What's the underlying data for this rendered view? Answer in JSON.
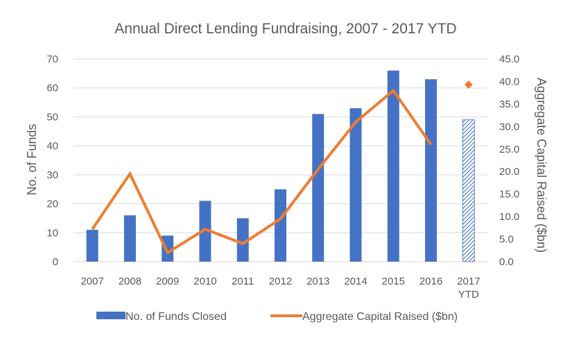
{
  "chart_data": {
    "type": "bar",
    "title": "Annual Direct Lending Fundraising, 2007 - 2017 YTD",
    "categories": [
      "2007",
      "2008",
      "2009",
      "2010",
      "2011",
      "2012",
      "2013",
      "2014",
      "2015",
      "2016",
      "2017 YTD"
    ],
    "series": [
      {
        "name": "No. of Funds Closed",
        "type": "bar",
        "axis": "left",
        "color": "#4472C4",
        "values": [
          11,
          16,
          9,
          21,
          15,
          25,
          51,
          53,
          66,
          63,
          49
        ]
      },
      {
        "name": "Aggregate Capital Raised ($bn)",
        "type": "line",
        "axis": "right",
        "color": "#ED7D31",
        "values": [
          7.2,
          19.5,
          2.0,
          7.2,
          4.0,
          9.5,
          20.5,
          31.0,
          38.0,
          26.0,
          39.3
        ]
      }
    ],
    "last_point_style": "2017 YTD shown as hatched bar and standalone diamond marker",
    "ylabel": "No. of Funds",
    "y2label": "Aggregate Capital Raised ($bn)",
    "ylim": [
      0,
      70
    ],
    "y2lim": [
      0,
      45
    ],
    "yticks": [
      "0",
      "10",
      "20",
      "30",
      "40",
      "50",
      "60",
      "70"
    ],
    "y2ticks": [
      "0.0",
      "5.0",
      "10.0",
      "15.0",
      "20.0",
      "25.0",
      "30.0",
      "35.0",
      "40.0",
      "45.0"
    ],
    "grid": true,
    "legend": "bottom"
  }
}
